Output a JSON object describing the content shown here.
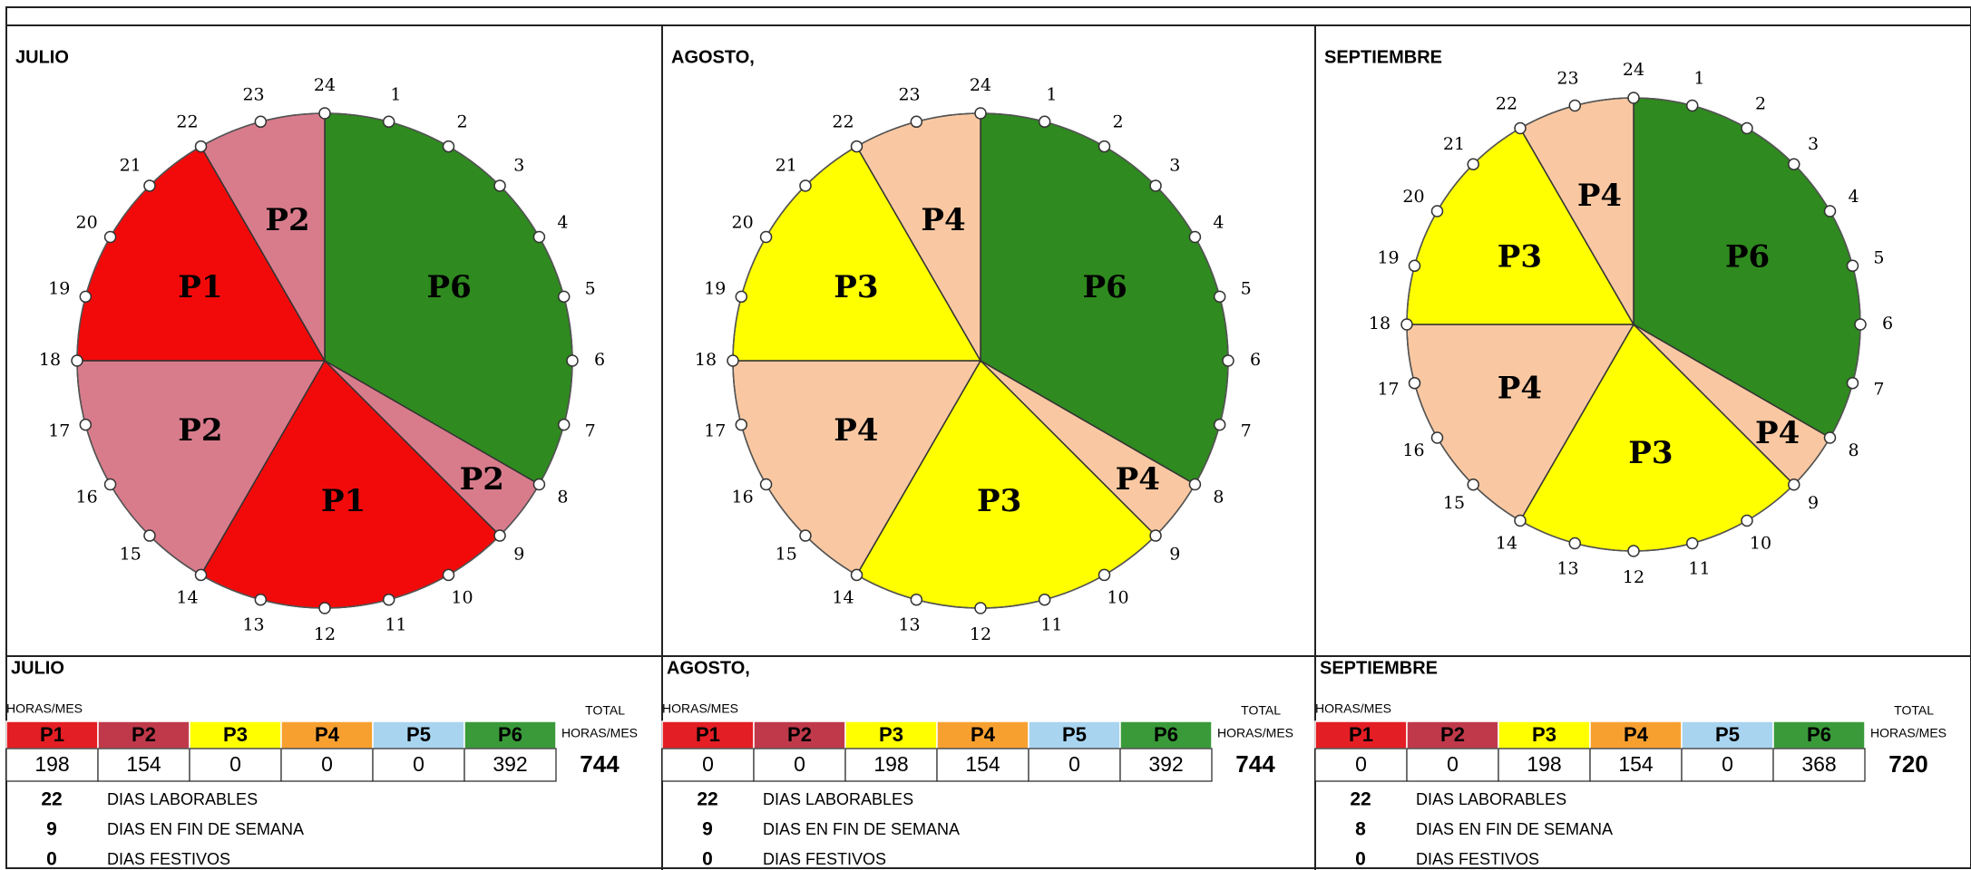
{
  "hour_labels": [
    1,
    2,
    3,
    4,
    5,
    6,
    7,
    8,
    9,
    10,
    11,
    12,
    13,
    14,
    15,
    16,
    17,
    18,
    19,
    20,
    21,
    22,
    23,
    24
  ],
  "headers": {
    "horas_mes": "HORAS/MES",
    "total": "TOTAL",
    "total_sub": "HORAS/MES",
    "periods": [
      "P1",
      "P2",
      "P3",
      "P4",
      "P5",
      "P6"
    ],
    "days": [
      "DIAS LABORABLES",
      "DIAS EN FIN DE SEMANA",
      "DIAS FESTIVOS"
    ]
  },
  "pie_colors": [
    "#f20a0a",
    "#d87c8c",
    "#ffff00",
    "#f9c8a2",
    "#a8d4f0",
    "#2f8a1f"
  ],
  "header_colors": [
    "#e31e24",
    "#c0394b",
    "#ffff00",
    "#f7a030",
    "#a8d4f0",
    "#3a9a3a"
  ],
  "panels": [
    {
      "month": "JULIO",
      "segments": [
        {
          "label": "P6",
          "hours": 8
        },
        {
          "label": "P2",
          "hours": 1
        },
        {
          "label": "P1",
          "hours": 5
        },
        {
          "label": "P2",
          "hours": 4
        },
        {
          "label": "P1",
          "hours": 4
        },
        {
          "label": "P2",
          "hours": 2
        }
      ],
      "hours": [
        198,
        154,
        0,
        0,
        0,
        392
      ],
      "total": 744,
      "days": [
        22,
        9,
        0
      ]
    },
    {
      "month": "AGOSTO,",
      "segments": [
        {
          "label": "P6",
          "hours": 8
        },
        {
          "label": "P4",
          "hours": 1
        },
        {
          "label": "P3",
          "hours": 5
        },
        {
          "label": "P4",
          "hours": 4
        },
        {
          "label": "P3",
          "hours": 4
        },
        {
          "label": "P4",
          "hours": 2
        }
      ],
      "hours": [
        0,
        0,
        198,
        154,
        0,
        392
      ],
      "total": 744,
      "days": [
        22,
        9,
        0
      ]
    },
    {
      "month": "SEPTIEMBRE",
      "segments": [
        {
          "label": "P6",
          "hours": 8
        },
        {
          "label": "P4",
          "hours": 1
        },
        {
          "label": "P3",
          "hours": 5
        },
        {
          "label": "P4",
          "hours": 4
        },
        {
          "label": "P3",
          "hours": 4
        },
        {
          "label": "P4",
          "hours": 2
        }
      ],
      "hours": [
        0,
        0,
        198,
        154,
        0,
        368
      ],
      "total": 720,
      "days": [
        22,
        8,
        0
      ]
    }
  ]
}
